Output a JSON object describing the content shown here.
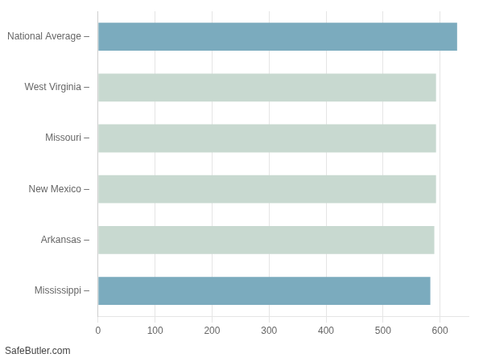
{
  "chart_data": {
    "type": "bar",
    "orientation": "horizontal",
    "categories": [
      "National Average –",
      "West Virginia –",
      "Missouri –",
      "New Mexico –",
      "Arkansas –",
      "Mississippi –"
    ],
    "values": [
      630,
      593,
      593,
      593,
      590,
      583
    ],
    "colors": [
      "#7BABBE",
      "#C8D9D0",
      "#C8D9D0",
      "#C8D9D0",
      "#C8D9D0",
      "#7BABBE"
    ],
    "xlim": [
      0,
      650
    ],
    "xticks": [
      0,
      100,
      200,
      300,
      400,
      500,
      600
    ],
    "grid": true,
    "annotations": [
      "SafeButler.com"
    ]
  }
}
